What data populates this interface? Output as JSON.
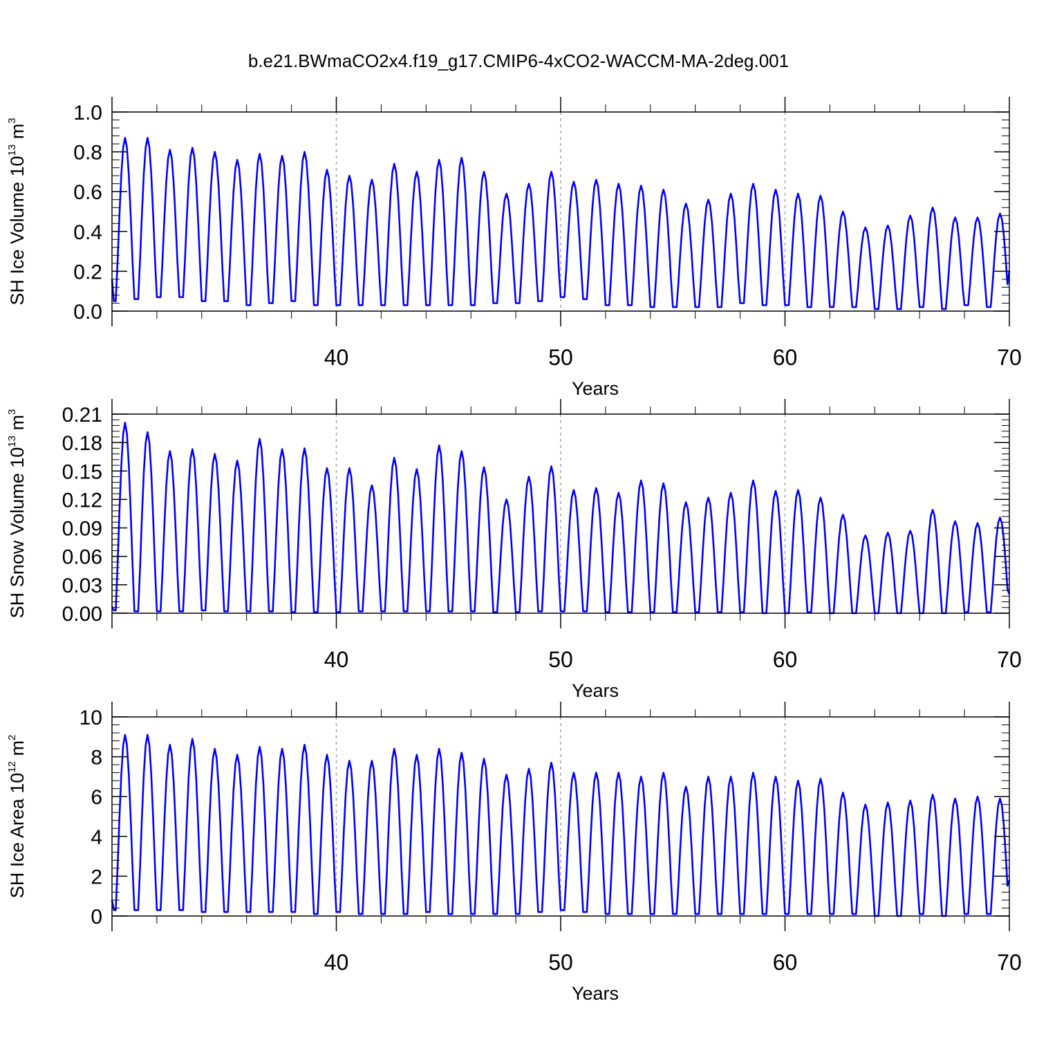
{
  "figure": {
    "title": "b.e21.BWmaCO2x4.f19_g17.CMIP6-4xCO2-WACCM-MA-2deg.001"
  },
  "colors": {
    "series": "#0000ff",
    "axes": "#000000",
    "vgrid": "#a0a0a0"
  },
  "chart_data": [
    {
      "type": "line",
      "xlabel": "Years",
      "ylabel": {
        "main": "SH Ice Volume 10",
        "exp": "13",
        "unit": " m",
        "unit_exp": "3"
      },
      "xlim": [
        30,
        70
      ],
      "ylim": [
        0,
        1.0
      ],
      "yticks": [
        "0.0",
        "0.2",
        "0.4",
        "0.6",
        "0.8",
        "1.0"
      ],
      "xticks": [
        "40",
        "50",
        "60",
        "70"
      ],
      "vgrid_at": [
        40,
        50,
        60
      ],
      "series": [
        {
          "start_year": 30,
          "min": 0.05,
          "start": 0.16,
          "end": 0.2,
          "annual_max": [
            0.87,
            0.87,
            0.81,
            0.82,
            0.8,
            0.76,
            0.79,
            0.78,
            0.8,
            0.71,
            0.68,
            0.66,
            0.74,
            0.7,
            0.76,
            0.77,
            0.7,
            0.59,
            0.64,
            0.7,
            0.65,
            0.66,
            0.64,
            0.63,
            0.61,
            0.54,
            0.56,
            0.59,
            0.64,
            0.61,
            0.59,
            0.58,
            0.5,
            0.42,
            0.43,
            0.48,
            0.52,
            0.47,
            0.47,
            0.49
          ],
          "annual_min": [
            0.05,
            0.06,
            0.07,
            0.07,
            0.05,
            0.05,
            0.03,
            0.04,
            0.05,
            0.03,
            0.03,
            0.03,
            0.03,
            0.03,
            0.03,
            0.03,
            0.03,
            0.04,
            0.04,
            0.05,
            0.07,
            0.06,
            0.03,
            0.03,
            0.02,
            0.02,
            0.02,
            0.02,
            0.04,
            0.03,
            0.03,
            0.02,
            0.02,
            0.02,
            0.01,
            0.01,
            0.02,
            0.01,
            0.03,
            0.02
          ]
        }
      ]
    },
    {
      "type": "line",
      "xlabel": "Years",
      "ylabel": {
        "main": "SH Snow Volume 10",
        "exp": "13",
        "unit": " m",
        "unit_exp": "3"
      },
      "xlim": [
        30,
        70
      ],
      "ylim": [
        0,
        0.21
      ],
      "yticks": [
        "0.00",
        "0.03",
        "0.06",
        "0.09",
        "0.12",
        "0.15",
        "0.18",
        "0.21"
      ],
      "xticks": [
        "40",
        "50",
        "60",
        "70"
      ],
      "vgrid_at": [
        40,
        50,
        60
      ],
      "series": [
        {
          "start_year": 30,
          "min": 0.0,
          "start": 0.007,
          "end": 0.02,
          "annual_max": [
            0.201,
            0.191,
            0.171,
            0.173,
            0.168,
            0.161,
            0.184,
            0.173,
            0.174,
            0.153,
            0.153,
            0.135,
            0.164,
            0.152,
            0.177,
            0.171,
            0.154,
            0.12,
            0.144,
            0.155,
            0.13,
            0.132,
            0.127,
            0.14,
            0.137,
            0.117,
            0.122,
            0.127,
            0.14,
            0.129,
            0.13,
            0.122,
            0.104,
            0.082,
            0.085,
            0.087,
            0.109,
            0.097,
            0.095,
            0.101
          ],
          "annual_min": [
            0.003,
            0.002,
            0.002,
            0.002,
            0.003,
            0.002,
            0.002,
            0.002,
            0.001,
            0.001,
            0.001,
            0.002,
            0.002,
            0.002,
            0.002,
            0.002,
            0.002,
            0.001,
            0.001,
            0.002,
            0.002,
            0.002,
            0.001,
            0.001,
            0.001,
            0.001,
            0.001,
            0.001,
            0.001,
            0.0,
            0.0,
            0.001,
            0.0,
            0.0,
            0.0,
            0.0,
            0.0,
            0.0,
            0.001,
            0.001
          ]
        }
      ]
    },
    {
      "type": "line",
      "xlabel": "Years",
      "ylabel": {
        "main": "SH Ice Area 10",
        "exp": "12",
        "unit": " m",
        "unit_exp": "2"
      },
      "xlim": [
        30,
        70
      ],
      "ylim": [
        0,
        10
      ],
      "yticks": [
        "0",
        "2",
        "4",
        "6",
        "8",
        "10"
      ],
      "xticks": [
        "40",
        "50",
        "60",
        "70"
      ],
      "vgrid_at": [
        40,
        50,
        60
      ],
      "series": [
        {
          "start_year": 30,
          "min": 0.2,
          "start": 0.8,
          "end": 1.8,
          "annual_max": [
            9.1,
            9.1,
            8.6,
            8.9,
            8.4,
            8.1,
            8.5,
            8.4,
            8.6,
            8.1,
            7.8,
            7.8,
            8.4,
            8.1,
            8.4,
            8.2,
            7.9,
            7.1,
            7.4,
            7.7,
            7.2,
            7.2,
            7.2,
            7.0,
            7.2,
            6.5,
            7.0,
            7.0,
            7.2,
            7.0,
            6.8,
            6.9,
            6.2,
            5.6,
            5.7,
            5.8,
            6.1,
            5.9,
            6.0,
            5.9
          ],
          "annual_min": [
            0.3,
            0.3,
            0.3,
            0.3,
            0.2,
            0.2,
            0.2,
            0.2,
            0.2,
            0.1,
            0.2,
            0.1,
            0.1,
            0.1,
            0.2,
            0.1,
            0.1,
            0.1,
            0.1,
            0.2,
            0.3,
            0.2,
            0.1,
            0.1,
            0.1,
            0.1,
            0.1,
            0.1,
            0.1,
            0.1,
            0.1,
            0.1,
            0.1,
            0.1,
            0.0,
            0.0,
            0.1,
            0.0,
            0.1,
            0.1
          ]
        }
      ]
    }
  ]
}
